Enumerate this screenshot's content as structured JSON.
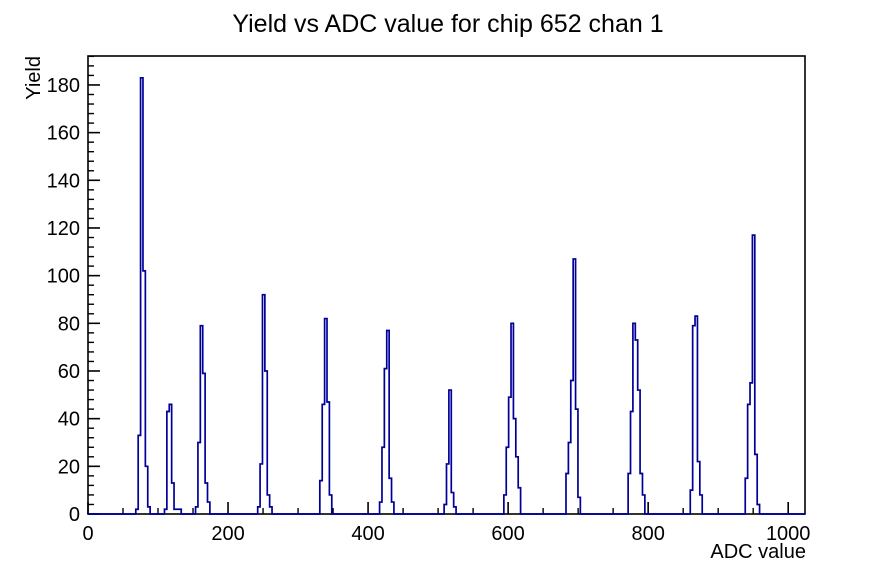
{
  "chart_data": {
    "type": "bar",
    "subtype": "root-step-histogram",
    "title": "Yield vs ADC value for chip 652 chan 1",
    "xlabel": "ADC value",
    "ylabel": "Yield",
    "xlim": [
      0,
      1024
    ],
    "ylim": [
      0,
      192.15
    ],
    "x_major_ticks": [
      0,
      200,
      400,
      600,
      800,
      1000
    ],
    "x_minor_step": 50,
    "y_major_ticks": [
      0,
      20,
      40,
      60,
      80,
      100,
      120,
      140,
      160,
      180
    ],
    "y_minor_step": 4,
    "grid": false,
    "legend": false,
    "bin_width": 3.4133,
    "line_color": "#000099",
    "axis_color": "#000000",
    "background_color": "#ffffff",
    "bins": [
      [
        71.6,
        2
      ],
      [
        75.0,
        33
      ],
      [
        78.4,
        183
      ],
      [
        81.8,
        102
      ],
      [
        85.2,
        20
      ],
      [
        88.6,
        3
      ],
      [
        110.6,
        2
      ],
      [
        114.0,
        43
      ],
      [
        117.4,
        46
      ],
      [
        120.8,
        13
      ],
      [
        124.2,
        2
      ],
      [
        126.3,
        2
      ],
      [
        129.7,
        2
      ],
      [
        133.1,
        2
      ],
      [
        154.8,
        3
      ],
      [
        158.2,
        30
      ],
      [
        161.6,
        79
      ],
      [
        165.0,
        59
      ],
      [
        168.4,
        13
      ],
      [
        171.8,
        5
      ],
      [
        242.6,
        3
      ],
      [
        246.0,
        21
      ],
      [
        249.4,
        92
      ],
      [
        252.8,
        60
      ],
      [
        256.2,
        8
      ],
      [
        259.6,
        3
      ],
      [
        331.9,
        14
      ],
      [
        335.3,
        46
      ],
      [
        338.7,
        82
      ],
      [
        342.1,
        47
      ],
      [
        345.5,
        8
      ],
      [
        417.3,
        5
      ],
      [
        420.7,
        28
      ],
      [
        424.1,
        61
      ],
      [
        427.5,
        77
      ],
      [
        430.9,
        15
      ],
      [
        434.3,
        5
      ],
      [
        511.1,
        4
      ],
      [
        514.5,
        21
      ],
      [
        517.9,
        52
      ],
      [
        521.3,
        9
      ],
      [
        524.7,
        3
      ],
      [
        595.5,
        8
      ],
      [
        598.9,
        28
      ],
      [
        602.3,
        49
      ],
      [
        605.7,
        80
      ],
      [
        609.1,
        40
      ],
      [
        612.5,
        24
      ],
      [
        615.9,
        11
      ],
      [
        683.8,
        17
      ],
      [
        687.2,
        30
      ],
      [
        690.6,
        56
      ],
      [
        694.0,
        107
      ],
      [
        697.4,
        44
      ],
      [
        700.8,
        7
      ],
      [
        774.2,
        17
      ],
      [
        777.6,
        43
      ],
      [
        781.0,
        80
      ],
      [
        784.4,
        73
      ],
      [
        787.8,
        52
      ],
      [
        791.2,
        17
      ],
      [
        794.6,
        8
      ],
      [
        860.2,
        10
      ],
      [
        863.6,
        79
      ],
      [
        867.0,
        83
      ],
      [
        870.4,
        39
      ],
      [
        873.8,
        22
      ],
      [
        877.2,
        8
      ],
      [
        939.6,
        15
      ],
      [
        943.0,
        46
      ],
      [
        946.4,
        55
      ],
      [
        949.8,
        117
      ],
      [
        953.2,
        25
      ],
      [
        956.6,
        4
      ]
    ],
    "peaks": [
      {
        "adc": 78,
        "yield": 183
      },
      {
        "adc": 117,
        "yield": 46
      },
      {
        "adc": 162,
        "yield": 79
      },
      {
        "adc": 249,
        "yield": 92
      },
      {
        "adc": 339,
        "yield": 82
      },
      {
        "adc": 428,
        "yield": 77
      },
      {
        "adc": 518,
        "yield": 52
      },
      {
        "adc": 606,
        "yield": 80
      },
      {
        "adc": 694,
        "yield": 107
      },
      {
        "adc": 781,
        "yield": 80
      },
      {
        "adc": 867,
        "yield": 83
      },
      {
        "adc": 950,
        "yield": 117
      }
    ]
  }
}
